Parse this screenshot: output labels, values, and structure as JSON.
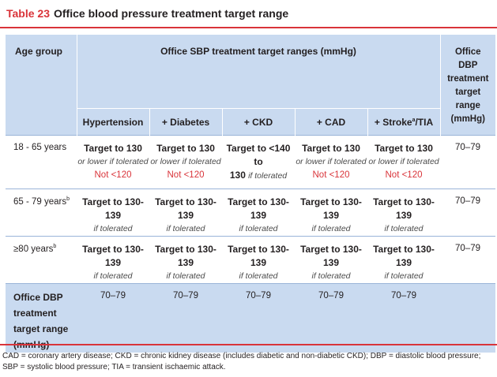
{
  "title": {
    "number": "Table 23",
    "text": "Office blood pressure treatment target range"
  },
  "header": {
    "age_group": "Age group",
    "sbp_span": "Office SBP treatment target ranges (mmHg)",
    "dbp_col": [
      "Office DBP",
      "treatment",
      "target range",
      "(mmHg)"
    ],
    "subcols": [
      "Hypertension",
      "+ Diabetes",
      "+ CKD",
      "+ CAD",
      "+ Stroke",
      "/TIA"
    ],
    "stroke_sup": "a"
  },
  "rows": [
    {
      "age": "18 - 65 years",
      "cells": [
        {
          "main": "Target to 130",
          "sub": "or lower if tolerated",
          "red": "Not <120"
        },
        {
          "main": "Target to 130",
          "sub": "or lower if tolerated",
          "red": "Not <120"
        },
        {
          "main": "Target to <140 to",
          "main2": "130",
          "sub": "if tolerated"
        },
        {
          "main": "Target to 130",
          "sub": "or lower if tolerated",
          "red": "Not <120"
        },
        {
          "main": "Target to 130",
          "sub": "or lower if tolerated",
          "red": "Not <120"
        }
      ],
      "dbp": "70–79"
    },
    {
      "age": "65 - 79 years",
      "age_sup": "b",
      "cells": [
        {
          "main": "Target to 130-139",
          "sub": "if tolerated"
        },
        {
          "main": "Target to 130-139",
          "sub": "if tolerated"
        },
        {
          "main": "Target to 130-139",
          "sub": "if tolerated"
        },
        {
          "main": "Target to 130-139",
          "sub": "if tolerated"
        },
        {
          "main": "Target to 130-139",
          "sub": "if tolerated"
        }
      ],
      "dbp": "70–79"
    },
    {
      "age": "≥80 years",
      "age_sup": "b",
      "cells": [
        {
          "main": "Target to 130-139",
          "sub": "if tolerated"
        },
        {
          "main": "Target to 130-139",
          "sub": "if tolerated"
        },
        {
          "main": "Target to 130-139",
          "sub": "if tolerated"
        },
        {
          "main": "Target to 130-139",
          "sub": "if tolerated"
        },
        {
          "main": "Target to 130-139",
          "sub": "if tolerated"
        }
      ],
      "dbp": "70–79"
    }
  ],
  "last_row": {
    "label": [
      "Office DBP",
      "treatment",
      "target range",
      "(mmHg)"
    ],
    "values": [
      "70–79",
      "70–79",
      "70–79",
      "70–79",
      "70–79"
    ]
  },
  "footnote": "CAD = coronary artery disease; CKD = chronic kidney disease (includes diabetic and non-diabetic CKD); DBP = diastolic blood pressure; SBP = systolic blood pressure; TIA = transient ischaemic attack.",
  "colors": {
    "accent_red": "#d9343a",
    "header_blue": "#c9daf0"
  }
}
